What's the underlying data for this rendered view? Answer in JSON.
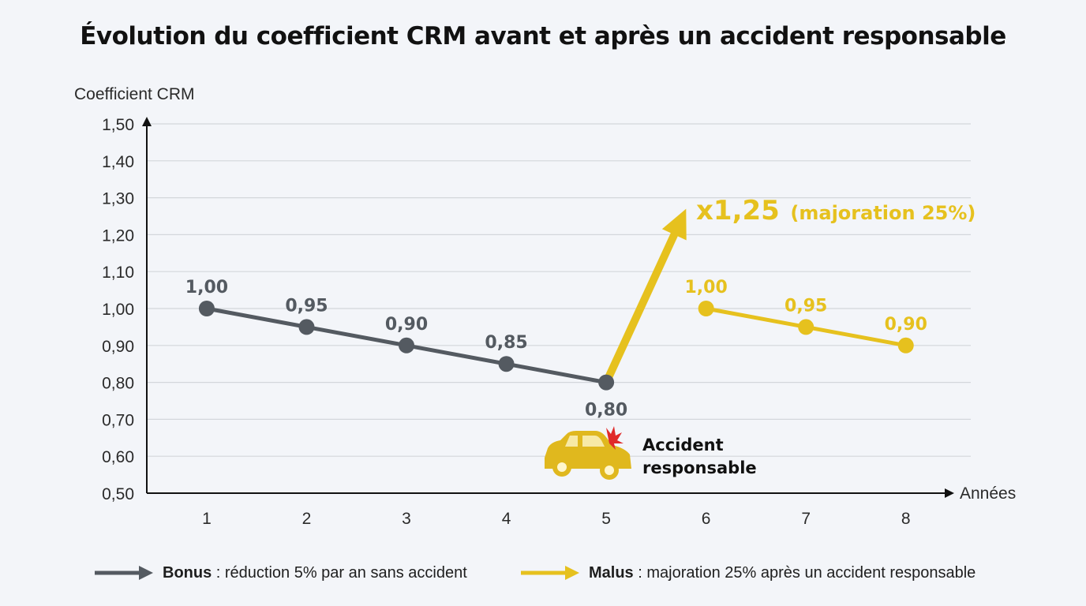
{
  "title": "Évolution du coefficient CRM avant et après un accident responsable",
  "colors": {
    "bonus": "#545a61",
    "malus": "#e6c11e",
    "grid": "#d3d6db",
    "axis": "#111111",
    "text": "#2a2a2a"
  },
  "annotations": {
    "multiplier": "x1,25",
    "multiplier_detail": "(majoration 25%)",
    "accident_line1": "Accident",
    "accident_line2": "responsable",
    "accident_icon": "crashed-car-icon"
  },
  "legend": {
    "bonus_bold": "Bonus",
    "bonus_text": " : réduction 5% par an sans accident",
    "malus_bold": "Malus",
    "malus_text": " : majoration 25% après un accident responsable"
  },
  "chart_data": {
    "type": "line",
    "title": "Évolution du coefficient CRM avant et après un accident responsable",
    "xlabel": "Années",
    "ylabel": "Coefficient CRM",
    "x_ticks": [
      "1",
      "2",
      "3",
      "4",
      "5",
      "6",
      "7",
      "8"
    ],
    "y_ticks": [
      "0,50",
      "0,60",
      "0,70",
      "0,80",
      "0,90",
      "1,00",
      "1,10",
      "1,20",
      "1,30",
      "1,40",
      "1,50"
    ],
    "ylim": [
      0.5,
      1.5
    ],
    "xlim": [
      0.4,
      8.65
    ],
    "grid": true,
    "series": [
      {
        "name": "Bonus",
        "color": "#545a61",
        "x": [
          1,
          2,
          3,
          4,
          5
        ],
        "y": [
          1.0,
          0.95,
          0.9,
          0.85,
          0.8
        ],
        "labels": [
          "1,00",
          "0,95",
          "0,90",
          "0,85",
          "0,80"
        ]
      },
      {
        "name": "Malus",
        "color": "#e6c11e",
        "x": [
          6,
          7,
          8
        ],
        "y": [
          1.0,
          0.95,
          0.9
        ],
        "labels": [
          "1,00",
          "0,95",
          "0,90"
        ]
      }
    ],
    "jump_arrow": {
      "from_x": 5,
      "from_y": 0.8,
      "to_x": 5.8,
      "to_y": 1.27
    }
  }
}
